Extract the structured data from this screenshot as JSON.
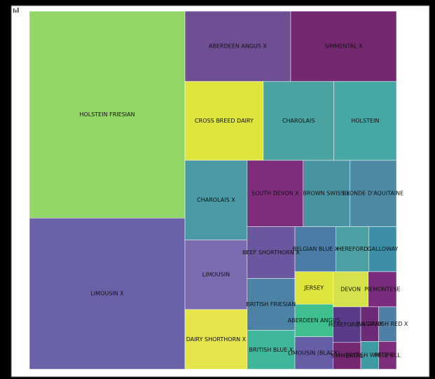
{
  "chart_data": {
    "type": "treemap",
    "items": [
      {
        "name": "HOLSTEIN FRIESIAN",
        "value": 26,
        "color": "#93d668"
      },
      {
        "name": "LIMOUSIN X",
        "value": 19,
        "color": "#6a62a8"
      },
      {
        "name": "ABERDEEN ANGUS X",
        "value": 6,
        "color": "#6e4f94"
      },
      {
        "name": "SIMMENTAL X",
        "value": 6,
        "color": "#73286f"
      },
      {
        "name": "CROSS BREED DAIRY",
        "value": 5,
        "color": "#dde43b"
      },
      {
        "name": "CHAROLAIS",
        "value": 4.5,
        "color": "#4aa3a0"
      },
      {
        "name": "HOLSTEIN",
        "value": 4,
        "color": "#46a7a4"
      },
      {
        "name": "CHAROLAIS X",
        "value": 4,
        "color": "#4a9aa6"
      },
      {
        "name": "LIMOUSIN",
        "value": 3.5,
        "color": "#7b6bb0"
      },
      {
        "name": "DAIRY SHORTHORN X",
        "value": 3,
        "color": "#e3e54a"
      },
      {
        "name": "SOUTH DEVON X",
        "value": 3,
        "color": "#7d2d7b"
      },
      {
        "name": "BROWN SWISS X",
        "value": 2.5,
        "color": "#4993a3"
      },
      {
        "name": "BLONDE D'AQUITAINE",
        "value": 2.5,
        "color": "#4e8aa4"
      },
      {
        "name": "BEEF SHORTHORN X",
        "value": 2,
        "color": "#6b57a0"
      },
      {
        "name": "BRITISH FRIESIAN",
        "value": 2,
        "color": "#4b82a5"
      },
      {
        "name": "BRITISH BLUE X",
        "value": 1.5,
        "color": "#3fb59b"
      },
      {
        "name": "BELGIAN BLUE X",
        "value": 1.5,
        "color": "#4c7ca5"
      },
      {
        "name": "HEREFORD",
        "value": 1.2,
        "color": "#4aa0a2"
      },
      {
        "name": "GALLOWAY",
        "value": 1,
        "color": "#3c8fa6"
      },
      {
        "name": "JERSEY",
        "value": 1,
        "color": "#dde43b"
      },
      {
        "name": "ABERDEEN ANGUS",
        "value": 1,
        "color": "#3fbf8e"
      },
      {
        "name": "LIMOUSIN (BLACK)",
        "value": 1,
        "color": "#655da6"
      },
      {
        "name": "DEVON",
        "value": 1,
        "color": "#d6e24c"
      },
      {
        "name": "PIEMONTESE",
        "value": 0.8,
        "color": "#7a2d7c"
      },
      {
        "name": "HEREFORD X",
        "value": 0.8,
        "color": "#5a3b8a"
      },
      {
        "name": "SIMMENTAL",
        "value": 0.6,
        "color": "#73286f"
      },
      {
        "name": "WAGYU X",
        "value": 0.5,
        "color": "#6d2a77"
      },
      {
        "name": "DANISH RED X",
        "value": 0.5,
        "color": "#4f7fa6"
      },
      {
        "name": "BRITISH WHITE X",
        "value": 0.4,
        "color": "#3e9ba4"
      },
      {
        "name": "REDPOLL",
        "value": 0.4,
        "color": "#7d2d7b"
      }
    ]
  }
}
